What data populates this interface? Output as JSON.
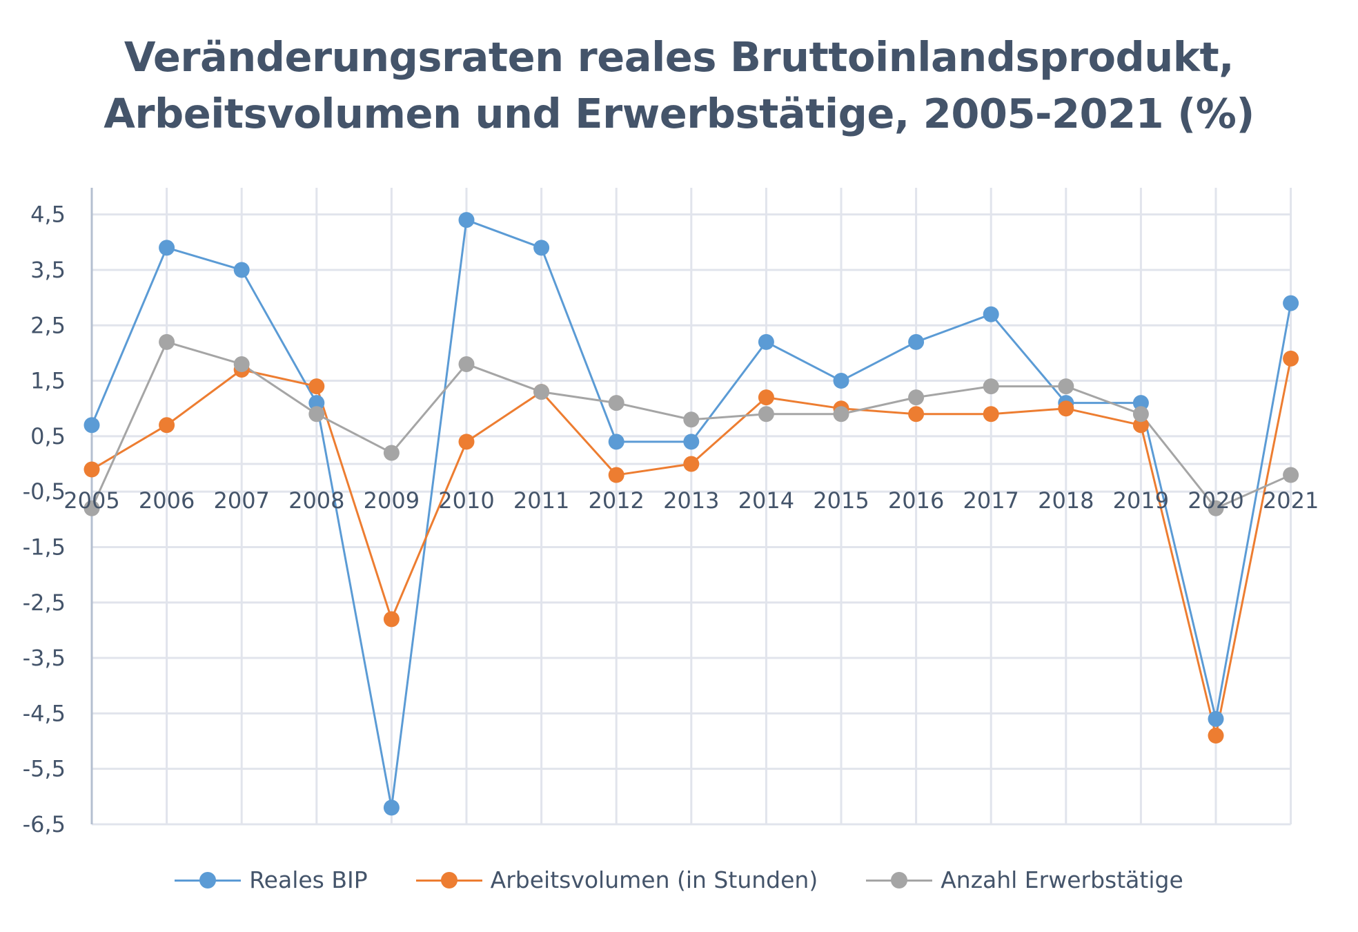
{
  "chart_data": {
    "type": "line",
    "title": "Veränderungsraten reales Bruttoinlandsprodukt, Arbeitsvolumen und Erwerbstätige, 2005-2021 (%)",
    "title_lines": [
      "Veränderungsraten reales Bruttoinlandsprodukt,",
      "Arbeitsvolumen und Erwerbstätige, 2005-2021 (%)"
    ],
    "xlabel": "",
    "ylabel": "",
    "categories": [
      "2005",
      "2006",
      "2007",
      "2008",
      "2009",
      "2010",
      "2011",
      "2012",
      "2013",
      "2014",
      "2015",
      "2016",
      "2017",
      "2018",
      "2019",
      "2020",
      "2021"
    ],
    "y_ticks": [
      4.5,
      3.5,
      2.5,
      1.5,
      0.5,
      -0.5,
      -1.5,
      -2.5,
      -3.5,
      -4.5,
      -5.5,
      -6.5
    ],
    "y_tick_labels": [
      "4,5",
      "3,5",
      "2,5",
      "1,5",
      "0,5",
      "-0,5",
      "-1,5",
      "-2,5",
      "-3,5",
      "-4,5",
      "-5,5",
      "-6,5"
    ],
    "ylim": [
      -6.5,
      5.0
    ],
    "grid": true,
    "legend_position": "bottom",
    "series": [
      {
        "name": "Reales BIP",
        "color": "#5b9bd5",
        "values": [
          0.7,
          3.9,
          3.5,
          1.1,
          -6.2,
          4.4,
          3.9,
          0.4,
          0.4,
          2.2,
          1.5,
          2.2,
          2.7,
          1.1,
          1.1,
          -4.6,
          2.9
        ]
      },
      {
        "name": "Arbeitsvolumen (in Stunden)",
        "color": "#ed7d31",
        "values": [
          -0.1,
          0.7,
          1.7,
          1.4,
          -2.8,
          0.4,
          1.3,
          -0.2,
          0.0,
          1.2,
          1.0,
          0.9,
          0.9,
          1.0,
          0.7,
          -4.9,
          1.9
        ]
      },
      {
        "name": "Anzahl Erwerbstätige",
        "color": "#a5a5a5",
        "values": [
          -0.8,
          2.2,
          1.8,
          0.9,
          0.2,
          1.8,
          1.3,
          1.1,
          0.8,
          0.9,
          0.9,
          1.2,
          1.4,
          1.4,
          0.9,
          -0.8,
          -0.2
        ]
      }
    ]
  }
}
